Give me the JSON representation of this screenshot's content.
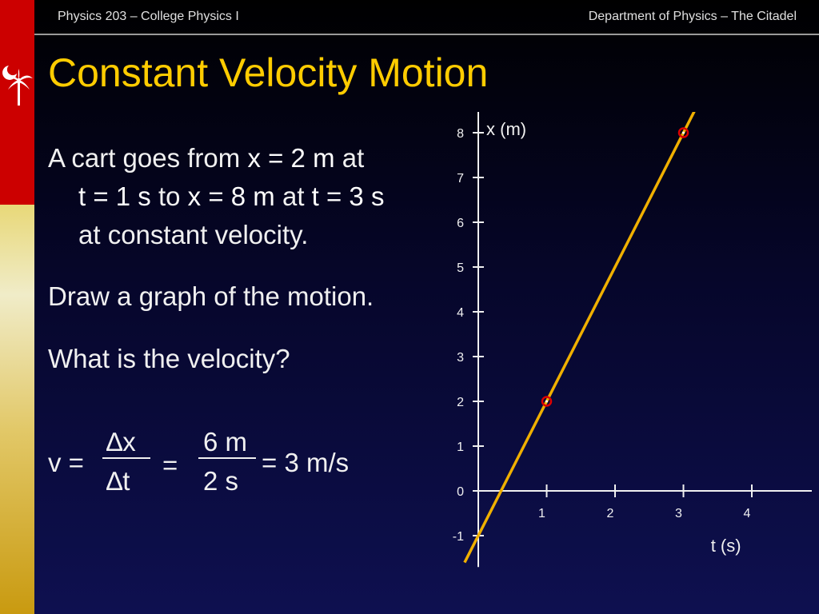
{
  "header": {
    "course": "Physics 203 – College Physics I",
    "department": "Department of Physics – The Citadel"
  },
  "slide": {
    "title": "Constant Velocity Motion",
    "para1": {
      "t1": "A cart goes from ",
      "t2": "x = 2 m",
      "t3": " at",
      "t4": "t = 1 s",
      "t5": " to ",
      "t6": "x = 8 m",
      "t7": " at ",
      "t8": "t = 3 s",
      "t9": "at constant velocity."
    },
    "para2": "Draw a graph of the motion.",
    "para3": "What is the velocity?",
    "equation": {
      "lhs": "v =",
      "num1": "∆x",
      "den1": "∆t",
      "eq2": "=",
      "num2": "6 m",
      "den2": "2 s",
      "result": "= 3 m/s"
    }
  },
  "colors": {
    "title": "#ffcc00",
    "line": "#f0b000",
    "point": "#dd0000",
    "accent_red": "#cc0000"
  },
  "logo": {
    "icon": "palmetto-crescent-icon"
  },
  "chart_data": {
    "type": "line",
    "xlabel": "t (s)",
    "ylabel": "x (m)",
    "x_ticks": [
      1,
      2,
      3,
      4
    ],
    "y_ticks": [
      -1,
      0,
      1,
      2,
      3,
      4,
      5,
      6,
      7,
      8
    ],
    "xlim": [
      -0.3,
      4.9
    ],
    "ylim": [
      -1.7,
      8.8
    ],
    "series": [
      {
        "type": "line",
        "x": [
          -0.2,
          3.7
        ],
        "y": [
          -1.6,
          10.1
        ]
      },
      {
        "type": "scatter",
        "x": [
          1,
          3
        ],
        "y": [
          2,
          8
        ]
      }
    ]
  }
}
